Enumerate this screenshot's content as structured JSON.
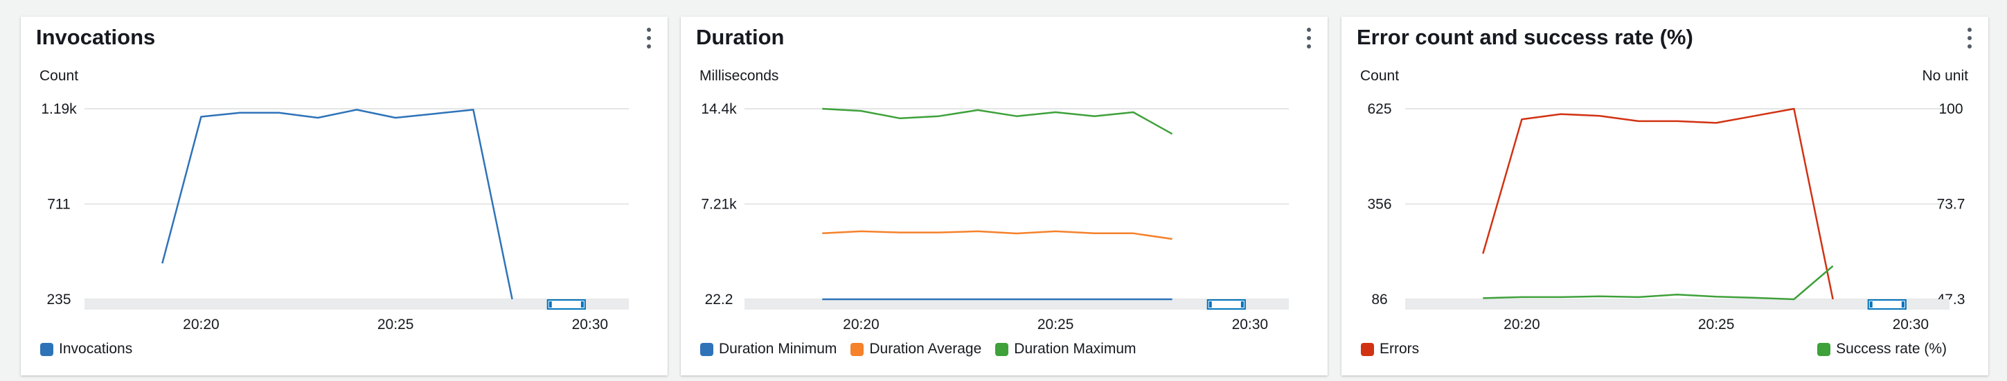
{
  "panels": [
    {
      "title": "Invocations",
      "legend": [
        {
          "label": "Invocations",
          "color": "#2e73b8"
        }
      ]
    },
    {
      "title": "Duration",
      "legend": [
        {
          "label": "Duration Minimum",
          "color": "#2e73b8"
        },
        {
          "label": "Duration Average",
          "color": "#f5812b"
        },
        {
          "label": "Duration Maximum",
          "color": "#3ea13a"
        }
      ]
    },
    {
      "title": "Error count and success rate (%)",
      "legend": [
        {
          "label": "Errors",
          "color": "#d13212"
        }
      ],
      "legend_right": [
        {
          "label": "Success rate (%)",
          "color": "#3ea13a"
        }
      ]
    }
  ],
  "chart_data": [
    {
      "type": "line",
      "ylabel": "Count",
      "ylim": [
        235,
        1190
      ],
      "yticks": [
        "1.19k",
        "711",
        "235"
      ],
      "x_ticks": [
        "20:20",
        "20:25",
        "20:30"
      ],
      "series": [
        {
          "name": "Invocations",
          "color": "#2e73b8",
          "x": [
            "20:19",
            "20:20",
            "20:21",
            "20:22",
            "20:23",
            "20:24",
            "20:25",
            "20:26",
            "20:27",
            "20:28"
          ],
          "values": [
            415,
            1150,
            1170,
            1170,
            1145,
            1185,
            1145,
            1165,
            1185,
            235
          ]
        }
      ]
    },
    {
      "type": "line",
      "ylabel": "Milliseconds",
      "ylim": [
        22.2,
        14400
      ],
      "yticks": [
        "14.4k",
        "7.21k",
        "22.2"
      ],
      "x_ticks": [
        "20:20",
        "20:25",
        "20:30"
      ],
      "series": [
        {
          "name": "Duration Minimum",
          "color": "#2e73b8",
          "x": [
            "20:19",
            "20:20",
            "20:21",
            "20:22",
            "20:23",
            "20:24",
            "20:25",
            "20:26",
            "20:27",
            "20:28"
          ],
          "values": [
            22.2,
            22.2,
            22.2,
            22.2,
            22.2,
            22.2,
            22.2,
            22.2,
            22.2,
            22.2
          ]
        },
        {
          "name": "Duration Average",
          "color": "#f5812b",
          "x": [
            "20:19",
            "20:20",
            "20:21",
            "20:22",
            "20:23",
            "20:24",
            "20:25",
            "20:26",
            "20:27",
            "20:28"
          ],
          "values": [
            5000,
            5150,
            5060,
            5060,
            5150,
            4990,
            5150,
            5000,
            5000,
            4570
          ]
        },
        {
          "name": "Duration Maximum",
          "color": "#3ea13a",
          "x": [
            "20:19",
            "20:20",
            "20:21",
            "20:22",
            "20:23",
            "20:24",
            "20:25",
            "20:26",
            "20:27",
            "20:28"
          ],
          "values": [
            14400,
            14240,
            13680,
            13840,
            14300,
            13840,
            14140,
            13840,
            14140,
            12500
          ]
        }
      ]
    },
    {
      "type": "line",
      "ylabel": "Count",
      "ylabel_right": "No unit",
      "ylim": [
        86,
        625
      ],
      "ylim_right": [
        47.3,
        100
      ],
      "yticks": [
        "625",
        "356",
        "86"
      ],
      "yticks_right": [
        "100",
        "73.7",
        "47.3"
      ],
      "x_ticks": [
        "20:20",
        "20:25",
        "20:30"
      ],
      "series": [
        {
          "name": "Errors",
          "color": "#d13212",
          "axis": "left",
          "x": [
            "20:19",
            "20:20",
            "20:21",
            "20:22",
            "20:23",
            "20:24",
            "20:25",
            "20:26",
            "20:27",
            "20:28"
          ],
          "values": [
            215,
            595,
            610,
            605,
            590,
            590,
            585,
            605,
            625,
            86
          ]
        },
        {
          "name": "Success rate (%)",
          "color": "#3ea13a",
          "axis": "right",
          "x": [
            "20:19",
            "20:20",
            "20:21",
            "20:22",
            "20:23",
            "20:24",
            "20:25",
            "20:26",
            "20:27",
            "20:28"
          ],
          "values": [
            47.6,
            47.9,
            47.9,
            48.1,
            47.9,
            48.6,
            48.0,
            47.7,
            47.3,
            56.5
          ]
        }
      ]
    }
  ]
}
